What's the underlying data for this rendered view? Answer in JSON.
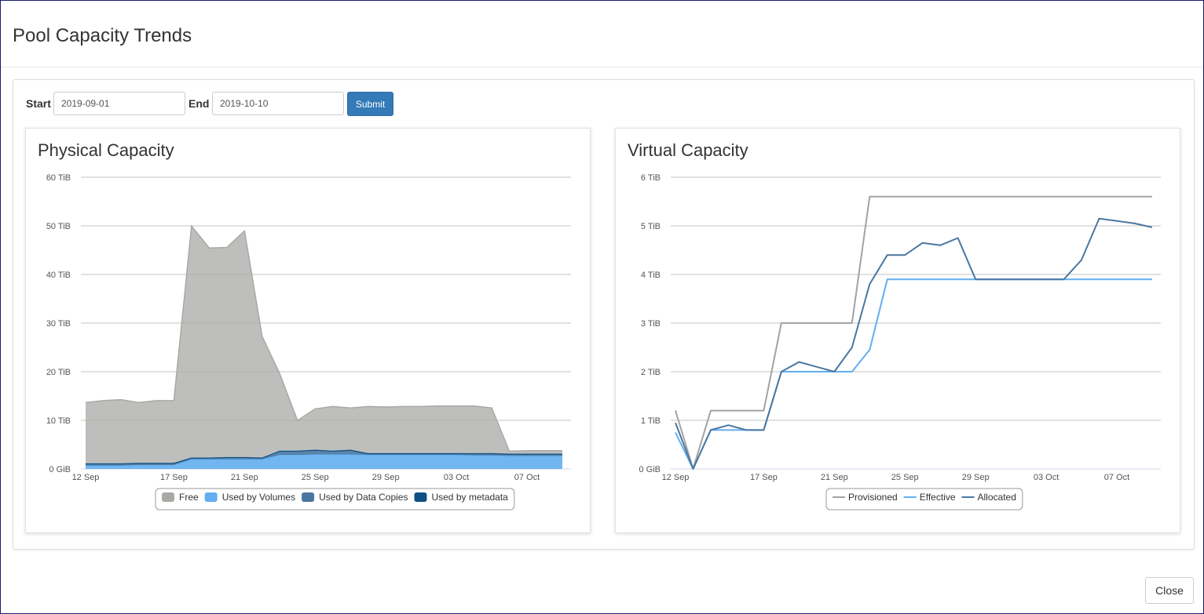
{
  "dialog": {
    "title": "Pool Capacity Trends",
    "close_label": "Close"
  },
  "filters": {
    "start_label": "Start",
    "start_value": "2019-09-01",
    "end_label": "End",
    "end_value": "2019-10-10",
    "submit_label": "Submit"
  },
  "charts": {
    "physical": {
      "title": "Physical Capacity"
    },
    "virtual": {
      "title": "Virtual Capacity"
    }
  },
  "chart_data": [
    {
      "type": "area",
      "title": "Physical Capacity",
      "x_start": "2019-09-12",
      "x_end": "2019-10-10",
      "x_tick_labels": [
        "12 Sep",
        "17 Sep",
        "21 Sep",
        "25 Sep",
        "29 Sep",
        "03 Oct",
        "07 Oct"
      ],
      "x_tick_day_offsets": [
        0,
        5,
        9,
        13,
        17,
        21,
        25
      ],
      "y_unit": "TiB",
      "y_tick_labels": [
        "0 GiB",
        "10 TiB",
        "20 TiB",
        "30 TiB",
        "40 TiB",
        "50 TiB",
        "60 TiB"
      ],
      "ylim": [
        0,
        60
      ],
      "stacked": true,
      "legend_position": "bottom",
      "colors": {
        "Free": "#a8a9a5",
        "Used by Data Copies": "#4a77a0",
        "Used by Volumes": "#62aef0",
        "Used by metadata": "#0e5186"
      },
      "series": [
        {
          "name": "Used by Volumes",
          "values": [
            0.7,
            0.7,
            0.7,
            0.8,
            0.8,
            0.8,
            2.0,
            2.0,
            2.0,
            2.0,
            2.0,
            2.9,
            2.9,
            3.0,
            3.0,
            3.0,
            2.9,
            2.9,
            2.9,
            2.9,
            2.9,
            2.9,
            2.8,
            2.8,
            2.7,
            2.7,
            2.7,
            2.7
          ]
        },
        {
          "name": "Used by Data Copies",
          "values": [
            0.3,
            0.3,
            0.3,
            0.3,
            0.3,
            0.3,
            0.2,
            0.2,
            0.3,
            0.3,
            0.2,
            0.7,
            0.7,
            0.8,
            0.6,
            0.8,
            0.2,
            0.2,
            0.2,
            0.2,
            0.2,
            0.2,
            0.3,
            0.3,
            0.3,
            0.3,
            0.3,
            0.3
          ]
        },
        {
          "name": "Used by metadata",
          "values": [
            0.05,
            0.05,
            0.05,
            0.05,
            0.05,
            0.05,
            0.05,
            0.05,
            0.05,
            0.05,
            0.05,
            0.05,
            0.05,
            0.05,
            0.05,
            0.05,
            0.05,
            0.05,
            0.05,
            0.05,
            0.05,
            0.05,
            0.05,
            0.05,
            0.05,
            0.05,
            0.05,
            0.05
          ]
        },
        {
          "name": "Free",
          "values": [
            12.6,
            13.0,
            13.2,
            12.5,
            12.9,
            12.9,
            47.7,
            43.2,
            43.2,
            46.6,
            25.0,
            15.9,
            6.3,
            8.5,
            9.2,
            8.7,
            9.7,
            9.6,
            9.7,
            9.7,
            9.8,
            9.8,
            9.8,
            9.4,
            0.6,
            0.7,
            0.7,
            0.7
          ]
        }
      ]
    },
    {
      "type": "line",
      "title": "Virtual Capacity",
      "x_start": "2019-09-12",
      "x_end": "2019-10-10",
      "x_tick_labels": [
        "12 Sep",
        "17 Sep",
        "21 Sep",
        "25 Sep",
        "29 Sep",
        "03 Oct",
        "07 Oct"
      ],
      "x_tick_day_offsets": [
        0,
        5,
        9,
        13,
        17,
        21,
        25
      ],
      "y_unit": "TiB",
      "y_tick_labels": [
        "0 GiB",
        "1 TiB",
        "2 TiB",
        "3 TiB",
        "4 TiB",
        "5 TiB",
        "6 TiB"
      ],
      "ylim": [
        0,
        6
      ],
      "legend_position": "bottom",
      "colors": {
        "Provisioned": "#a3a3a3",
        "Effective": "#62aef0",
        "Allocated": "#4a77a0"
      },
      "series": [
        {
          "name": "Provisioned",
          "values": [
            1.2,
            0.0,
            1.2,
            1.2,
            1.2,
            1.2,
            3.0,
            3.0,
            3.0,
            3.0,
            3.0,
            5.6,
            5.6,
            5.6,
            5.6,
            5.6,
            5.6,
            5.6,
            5.6,
            5.6,
            5.6,
            5.6,
            5.6,
            5.6,
            5.6,
            5.6,
            5.6,
            5.6
          ]
        },
        {
          "name": "Effective",
          "values": [
            0.75,
            0.0,
            0.8,
            0.8,
            0.8,
            0.8,
            2.0,
            2.0,
            2.0,
            2.0,
            2.0,
            2.45,
            3.9,
            3.9,
            3.9,
            3.9,
            3.9,
            3.9,
            3.9,
            3.9,
            3.9,
            3.9,
            3.9,
            3.9,
            3.9,
            3.9,
            3.9,
            3.9
          ]
        },
        {
          "name": "Allocated",
          "values": [
            0.95,
            0.0,
            0.8,
            0.9,
            0.8,
            0.8,
            2.0,
            2.2,
            2.1,
            2.0,
            2.5,
            3.8,
            4.4,
            4.4,
            4.65,
            4.6,
            4.75,
            3.9,
            3.9,
            3.9,
            3.9,
            3.9,
            3.9,
            4.3,
            5.15,
            5.1,
            5.05,
            4.97
          ]
        }
      ]
    }
  ]
}
